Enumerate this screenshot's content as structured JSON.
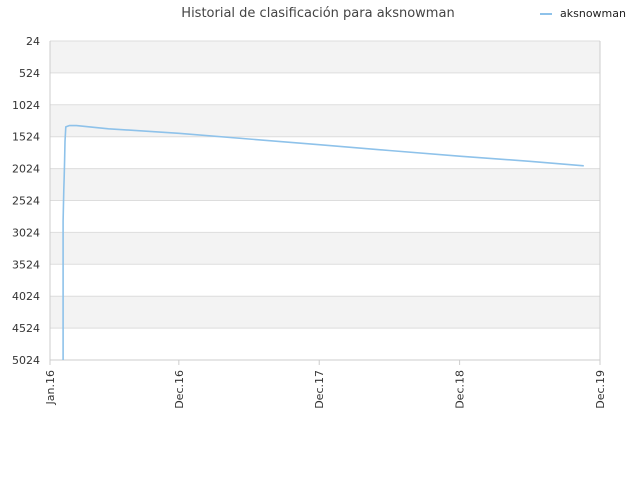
{
  "chart_data": {
    "type": "line",
    "title": "Historial de clasificación para aksnowman",
    "xlabel": "",
    "ylabel": "",
    "y_reversed": true,
    "ylim": [
      24,
      5024
    ],
    "y_ticks": [
      "24",
      "524",
      "1024",
      "1524",
      "2024",
      "2524",
      "3024",
      "3524",
      "4024",
      "4524",
      "5024"
    ],
    "xlim": [
      "2016-01-01",
      "2019-12-01"
    ],
    "x_ticks": [
      {
        "label": "Jan.16",
        "date": "2016-01-01"
      },
      {
        "label": "Dec.16",
        "date": "2016-12-01"
      },
      {
        "label": "Dec.17",
        "date": "2017-12-01"
      },
      {
        "label": "Dec.18",
        "date": "2018-12-01"
      },
      {
        "label": "Dec.19",
        "date": "2019-12-01"
      }
    ],
    "grid": true,
    "alternating_bands": true,
    "legend": "top-right",
    "colors": {
      "series": "#8ec2ea",
      "band": "#f3f3f3",
      "grid": "#dddddd",
      "axis": "#cccccc"
    },
    "series": [
      {
        "name": "aksnowman",
        "points": [
          {
            "x": "2016-02-04",
            "y": 5024
          },
          {
            "x": "2016-02-04",
            "y": 2850
          },
          {
            "x": "2016-02-06",
            "y": 2350
          },
          {
            "x": "2016-02-07",
            "y": 2150
          },
          {
            "x": "2016-02-08",
            "y": 1900
          },
          {
            "x": "2016-02-09",
            "y": 1600
          },
          {
            "x": "2016-02-11",
            "y": 1370
          },
          {
            "x": "2016-02-20",
            "y": 1350
          },
          {
            "x": "2016-03-10",
            "y": 1350
          },
          {
            "x": "2016-06-01",
            "y": 1400
          },
          {
            "x": "2016-12-01",
            "y": 1470
          },
          {
            "x": "2017-06-01",
            "y": 1560
          },
          {
            "x": "2017-12-01",
            "y": 1650
          },
          {
            "x": "2018-06-01",
            "y": 1740
          },
          {
            "x": "2018-12-01",
            "y": 1830
          },
          {
            "x": "2019-06-01",
            "y": 1910
          },
          {
            "x": "2019-10-20",
            "y": 1980
          }
        ]
      }
    ]
  }
}
